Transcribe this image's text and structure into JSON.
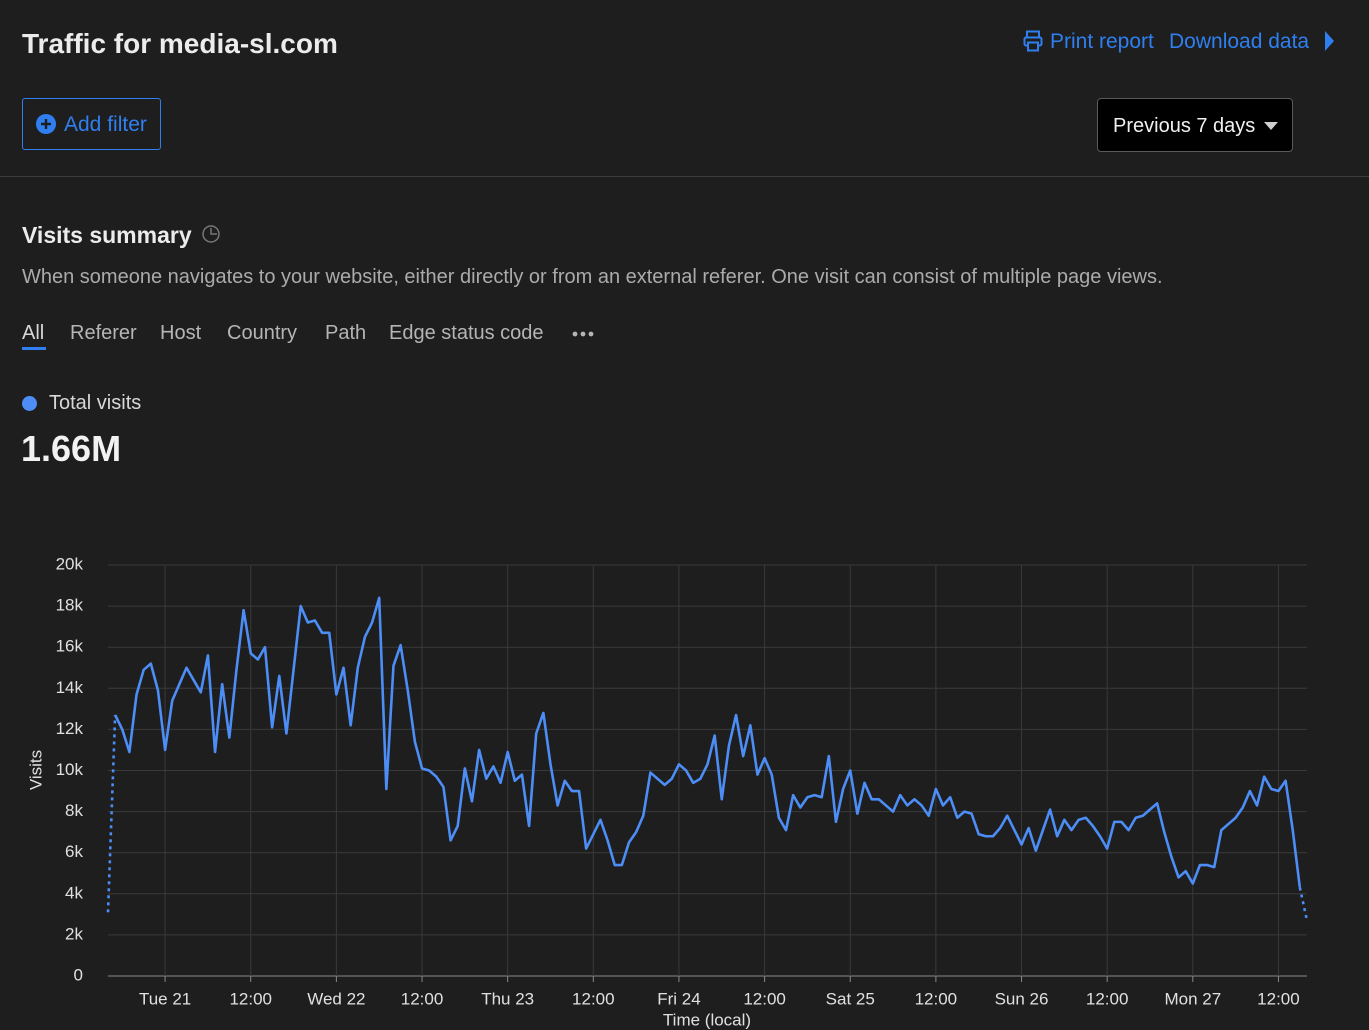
{
  "header": {
    "title": "Traffic for media-sl.com",
    "print": "Print report",
    "download": "Download data"
  },
  "filter": {
    "add": "Add filter",
    "range": "Previous 7 days"
  },
  "summary": {
    "title": "Visits summary",
    "description": "When someone navigates to your website, either directly or from an external referer. One visit can consist of multiple page views.",
    "tabs": [
      "All",
      "Referer",
      "Host",
      "Country",
      "Path",
      "Edge status code"
    ]
  },
  "chart": {
    "type": "line",
    "total": "1.66M",
    "y_label": "Visits",
    "x_label": "Time (local)",
    "grid": true,
    "ylim": [
      0,
      20000
    ],
    "yticks": [
      0,
      {
        "value": 2000,
        "label": "2k"
      },
      {
        "value": 4000,
        "label": "4k"
      },
      {
        "value": 6000,
        "label": "6k"
      },
      {
        "value": 8000,
        "label": "8k"
      },
      {
        "value": 10000,
        "label": "10k"
      },
      {
        "value": 12000,
        "label": "12k"
      },
      {
        "value": 14000,
        "label": "14k"
      },
      {
        "value": 16000,
        "label": "16k"
      },
      {
        "value": 18000,
        "label": "18k"
      },
      {
        "value": 20000,
        "label": "20k"
      }
    ],
    "categories": [
      null,
      null,
      null,
      null,
      null,
      null,
      null,
      null,
      "Tue 21",
      null,
      null,
      null,
      null,
      null,
      null,
      null,
      null,
      null,
      null,
      null,
      "12:00",
      null,
      null,
      null,
      null,
      null,
      null,
      null,
      null,
      null,
      null,
      null,
      "Wed 22",
      null,
      null,
      null,
      null,
      null,
      null,
      null,
      null,
      null,
      null,
      null,
      "12:00",
      null,
      null,
      null,
      null,
      null,
      null,
      null,
      null,
      null,
      null,
      null,
      "Thu 23",
      null,
      null,
      null,
      null,
      null,
      null,
      null,
      null,
      null,
      null,
      null,
      "12:00",
      null,
      null,
      null,
      null,
      null,
      null,
      null,
      null,
      null,
      null,
      null,
      "Fri 24",
      null,
      null,
      null,
      null,
      null,
      null,
      null,
      null,
      null,
      null,
      null,
      "12:00",
      null,
      null,
      null,
      null,
      null,
      null,
      null,
      null,
      null,
      null,
      null,
      "Sat 25",
      null,
      null,
      null,
      null,
      null,
      null,
      null,
      null,
      null,
      null,
      null,
      "12:00",
      null,
      null,
      null,
      null,
      null,
      null,
      null,
      null,
      null,
      null,
      null,
      "Sun 26",
      null,
      null,
      null,
      null,
      null,
      null,
      null,
      null,
      null,
      null,
      null,
      "12:00",
      null,
      null,
      null,
      null,
      null,
      null,
      null,
      null,
      null,
      null,
      null,
      "Mon 27",
      null,
      null,
      null,
      null,
      null,
      null,
      null,
      null,
      null,
      null,
      null,
      "12:00",
      null,
      null,
      null,
      null
    ],
    "series": [
      {
        "name": "Total visits",
        "color": "#4c8df6",
        "values": [
          3100,
          12700,
          12000,
          10900,
          13700,
          14900,
          15200,
          13900,
          11000,
          13400,
          14200,
          15000,
          14400,
          13800,
          15600,
          10900,
          14200,
          11600,
          14900,
          17800,
          15700,
          15400,
          16000,
          12100,
          14600,
          11800,
          14900,
          18000,
          17200,
          17300,
          16700,
          16700,
          13700,
          15000,
          12200,
          15000,
          16500,
          17200,
          18400,
          9100,
          15100,
          16100,
          13900,
          11400,
          10100,
          10000,
          9700,
          9200,
          6600,
          7300,
          10100,
          8500,
          11000,
          9600,
          10200,
          9400,
          10900,
          9500,
          9800,
          7300,
          11800,
          12800,
          10300,
          8300,
          9500,
          9000,
          9000,
          6200,
          6900,
          7600,
          6600,
          5400,
          5400,
          6500,
          7000,
          7800,
          9900,
          9600,
          9300,
          9600,
          10300,
          10000,
          9400,
          9600,
          10300,
          11700,
          8600,
          11200,
          12700,
          10700,
          12200,
          9800,
          10600,
          9800,
          7700,
          7100,
          8800,
          8200,
          8700,
          8800,
          8700,
          10700,
          7500,
          9100,
          10000,
          7900,
          9400,
          8600,
          8600,
          8300,
          8000,
          8800,
          8300,
          8600,
          8300,
          7800,
          9100,
          8300,
          8700,
          7700,
          8000,
          7900,
          6900,
          6800,
          6800,
          7200,
          7800,
          7100,
          6400,
          7200,
          6100,
          7100,
          8100,
          6800,
          7600,
          7100,
          7600,
          7700,
          7300,
          6800,
          6200,
          7500,
          7500,
          7100,
          7700,
          7800,
          8100,
          8400,
          7000,
          5800,
          4800,
          5100,
          4500,
          5400,
          5400,
          5300,
          7100,
          7400,
          7700,
          8200,
          9000,
          8300,
          9700,
          9100,
          9000,
          9500,
          7100,
          4300,
          2700
        ]
      }
    ]
  }
}
